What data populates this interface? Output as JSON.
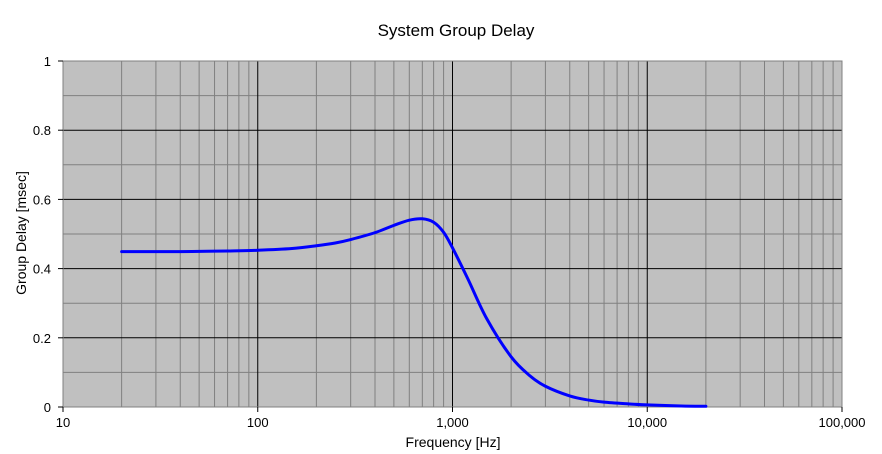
{
  "chart_data": {
    "type": "line",
    "title": "System Group Delay",
    "xlabel": "Frequency [Hz]",
    "ylabel": "Group Delay [msec]",
    "x_scale": "log",
    "xlim": [
      10,
      100000
    ],
    "ylim": [
      0,
      1
    ],
    "x_ticks": [
      10,
      100,
      1000,
      10000,
      100000
    ],
    "x_tick_labels": [
      "10",
      "100",
      "1,000",
      "10,000",
      "100,000"
    ],
    "y_ticks": [
      0,
      0.2,
      0.4,
      0.6,
      0.8,
      1
    ],
    "y_tick_labels": [
      "0",
      "0.2",
      "0.4",
      "0.6",
      "0.8",
      "1"
    ],
    "grid": true,
    "plot_background": "#c0c0c0",
    "series": [
      {
        "color": "#0000ff",
        "x": [
          20,
          30,
          40,
          55,
          70,
          100,
          150,
          200,
          250,
          300,
          400,
          500,
          600,
          700,
          800,
          900,
          1000,
          1200,
          1500,
          2000,
          2500,
          3000,
          4000,
          5000,
          6000,
          8000,
          10000,
          15000,
          20000
        ],
        "y": [
          0.449,
          0.449,
          0.449,
          0.45,
          0.451,
          0.453,
          0.458,
          0.466,
          0.474,
          0.484,
          0.504,
          0.525,
          0.54,
          0.544,
          0.534,
          0.505,
          0.46,
          0.37,
          0.255,
          0.145,
          0.09,
          0.06,
          0.032,
          0.02,
          0.014,
          0.009,
          0.006,
          0.003,
          0.002
        ]
      }
    ]
  }
}
